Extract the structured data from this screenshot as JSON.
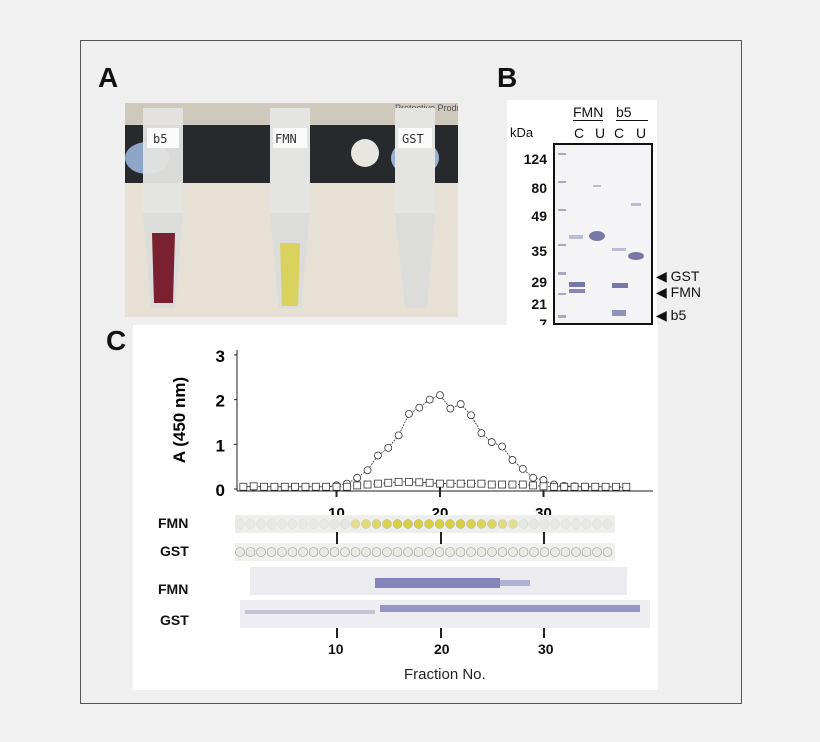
{
  "panels": {
    "a": "A",
    "b": "B",
    "c": "C"
  },
  "panel_a": {
    "tube_labels": [
      "b5",
      "FMN",
      "GST"
    ],
    "photo_text": [
      "Protective Products"
    ]
  },
  "panel_b": {
    "unit": "kDa",
    "groups": [
      "FMN",
      "b5"
    ],
    "lanes": [
      "C",
      "U",
      "C",
      "U"
    ],
    "markers": [
      "124",
      "80",
      "49",
      "35",
      "29",
      "21",
      "7"
    ],
    "arrows": [
      "GST",
      "FMN",
      "b5"
    ]
  },
  "panel_c": {
    "row_labels": [
      "FMN",
      "GST",
      "FMN",
      "GST"
    ],
    "bottom_ticks": [
      "10",
      "20",
      "30"
    ],
    "xlabel": "Fraction No."
  },
  "chart_data": {
    "type": "line",
    "ylabel": "A (450 nm)",
    "xlabel": "",
    "ylim": [
      0,
      3
    ],
    "xlim": [
      0,
      40
    ],
    "yticks": [
      "0",
      "1",
      "2",
      "3"
    ],
    "xticks": [
      "10",
      "20",
      "30"
    ],
    "grid": false,
    "x": [
      1,
      2,
      3,
      4,
      5,
      6,
      7,
      8,
      9,
      10,
      11,
      12,
      13,
      14,
      15,
      16,
      17,
      18,
      19,
      20,
      21,
      22,
      23,
      24,
      25,
      26,
      27,
      28,
      29,
      30,
      31,
      32,
      33,
      34,
      35,
      36,
      37,
      38
    ],
    "series": [
      {
        "marker": "circle",
        "values": [
          0.05,
          0.05,
          0.05,
          0.05,
          0.05,
          0.05,
          0.05,
          0.05,
          0.05,
          0.08,
          0.12,
          0.25,
          0.42,
          0.75,
          0.92,
          1.2,
          1.68,
          1.82,
          2.0,
          2.1,
          1.8,
          1.9,
          1.65,
          1.25,
          1.05,
          0.95,
          0.65,
          0.45,
          0.25,
          0.2,
          0.1,
          0.07,
          0.06,
          0.05,
          0.05,
          0.05,
          0.04,
          0.03
        ]
      },
      {
        "marker": "square",
        "values": [
          0.05,
          0.06,
          0.05,
          0.05,
          0.05,
          0.05,
          0.05,
          0.05,
          0.05,
          0.05,
          0.05,
          0.08,
          0.1,
          0.12,
          0.14,
          0.16,
          0.16,
          0.15,
          0.14,
          0.12,
          0.12,
          0.12,
          0.12,
          0.12,
          0.1,
          0.1,
          0.1,
          0.1,
          0.08,
          0.06,
          0.05,
          0.05,
          0.05,
          0.05,
          0.05,
          0.05,
          0.05,
          0.05
        ]
      }
    ]
  },
  "colors": {
    "gel_band": "#5a5aa8",
    "flavin": "#d8d040",
    "b5_red": "#7a2030"
  }
}
